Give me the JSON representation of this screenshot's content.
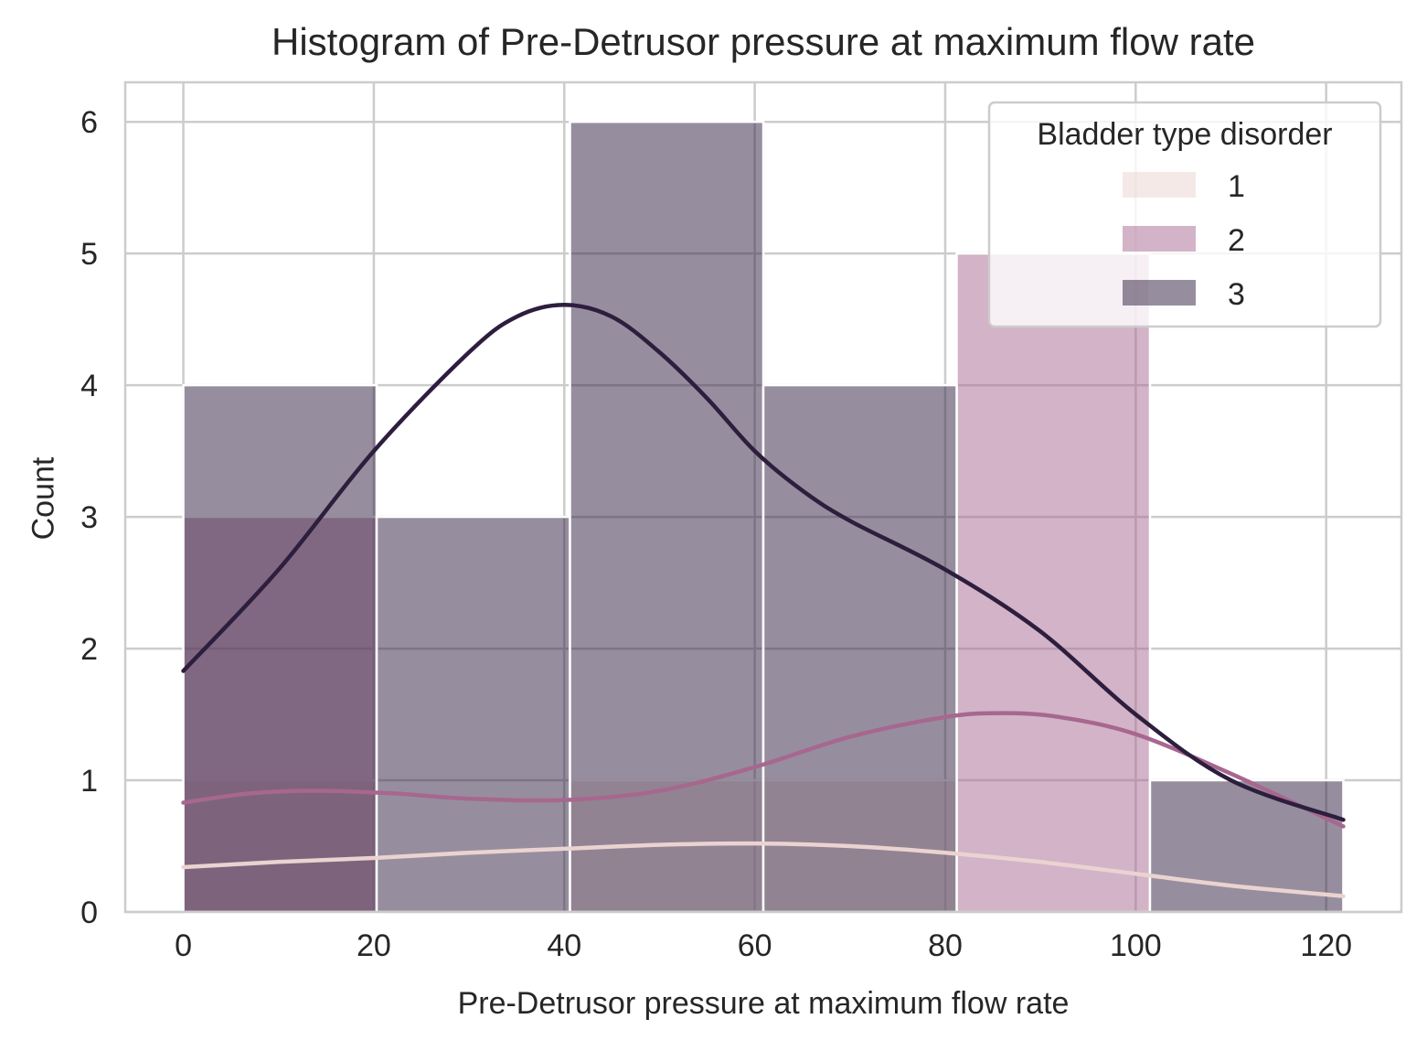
{
  "chart_data": {
    "type": "bar",
    "title": "Histogram of Pre-Detrusor pressure at maximum flow rate",
    "xlabel": "Pre-Detrusor pressure at maximum flow rate",
    "ylabel": "Count",
    "xlim": [
      -6.1,
      127.9
    ],
    "ylim": [
      0,
      6.3
    ],
    "xticks": [
      0,
      20,
      40,
      60,
      80,
      100,
      120
    ],
    "yticks": [
      0,
      1,
      2,
      3,
      4,
      5,
      6
    ],
    "grid": true,
    "bin_edges": [
      0,
      20.3,
      40.6,
      60.9,
      81.2,
      101.5,
      121.8
    ],
    "legend": {
      "title": "Bladder type disorder",
      "placement": "top-right"
    },
    "series": [
      {
        "name": "1",
        "color": "#ead3d0",
        "counts": [
          1,
          0,
          1,
          1,
          0,
          0
        ],
        "kde": {
          "x": [
            0,
            10,
            20,
            30,
            40,
            50,
            60,
            70,
            80,
            90,
            100,
            110,
            121.8
          ],
          "y": [
            0.34,
            0.38,
            0.41,
            0.45,
            0.48,
            0.51,
            0.52,
            0.5,
            0.45,
            0.38,
            0.29,
            0.2,
            0.12
          ]
        }
      },
      {
        "name": "2",
        "color": "#a7678f",
        "counts": [
          3,
          0,
          0,
          0,
          5,
          0
        ],
        "kde": {
          "x": [
            0,
            7,
            14,
            22,
            30,
            40,
            50,
            60,
            70,
            80,
            86,
            92,
            100,
            110,
            121.8
          ],
          "y": [
            0.83,
            0.9,
            0.92,
            0.9,
            0.86,
            0.85,
            0.92,
            1.1,
            1.33,
            1.48,
            1.51,
            1.48,
            1.35,
            1.05,
            0.65
          ]
        }
      },
      {
        "name": "3",
        "color": "#2d1e3e",
        "counts": [
          4,
          3,
          6,
          4,
          0,
          1
        ],
        "kde": {
          "x": [
            0,
            10,
            20,
            30,
            35,
            40,
            45,
            50,
            55,
            60,
            65,
            70,
            80,
            90,
            100,
            110,
            121.8
          ],
          "y": [
            1.83,
            2.6,
            3.5,
            4.25,
            4.52,
            4.61,
            4.52,
            4.25,
            3.9,
            3.5,
            3.2,
            2.97,
            2.6,
            2.13,
            1.5,
            1.0,
            0.7
          ]
        }
      }
    ]
  }
}
